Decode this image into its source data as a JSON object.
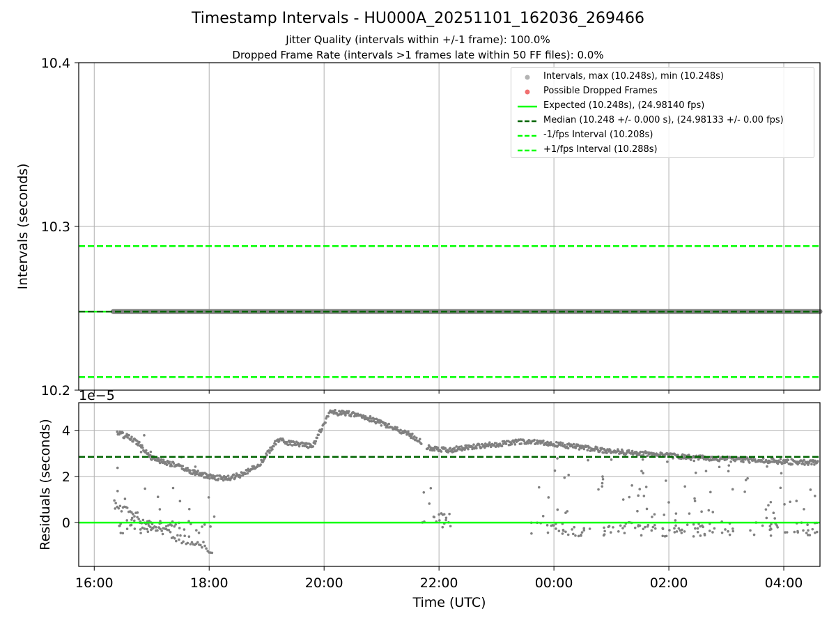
{
  "title": "Timestamp Intervals - HU000A_20251101_162036_269466",
  "subtitle_jitter": "Jitter Quality (intervals within +/-1 frame): 100.0%",
  "subtitle_dropped": "Dropped Frame Rate (intervals >1 frames late within 50 FF files): 0.0%",
  "colors": {
    "interval_points": "#808080",
    "dropped_points": "#f06060",
    "expected_line": "#00ff00",
    "median_line": "#006400",
    "fps_interval_line": "#00ff00",
    "grid": "#b0b0b0"
  },
  "legend": {
    "placement": "upper right",
    "items": [
      {
        "label": "Intervals, max (10.248s), min (10.248s)",
        "key": "dot-gray"
      },
      {
        "label": "Possible Dropped Frames",
        "key": "dot-red"
      },
      {
        "label": "Expected (10.248s), (24.98140 fps)",
        "key": "solid-green"
      },
      {
        "label": "Median (10.248 +/- 0.000 s), (24.98133 +/- 0.00 fps)",
        "key": "dash-darkgreen"
      },
      {
        "label": "-1/fps Interval (10.208s)",
        "key": "dash-green"
      },
      {
        "label": "+1/fps Interval (10.288s)",
        "key": "dash-green"
      }
    ]
  },
  "chart_data": [
    {
      "type": "scatter",
      "panel": "top",
      "ylabel": "Intervals (seconds)",
      "ylim": [
        10.2,
        10.4
      ],
      "yticks": [
        "10.2",
        "10.3",
        "10.4"
      ],
      "grid": true,
      "x_range_hours": [
        15.73,
        28.63
      ],
      "interval_series": {
        "start_hour": 16.33,
        "end_hour": 28.63,
        "value": 10.248
      },
      "lines": {
        "expected": 10.248,
        "median": 10.248,
        "minus_fps": 10.208,
        "plus_fps": 10.288
      }
    },
    {
      "type": "scatter",
      "panel": "bottom",
      "ylabel": "Residuals (seconds)",
      "offset_label": "1e−5",
      "ylim": [
        -1.9,
        5.2
      ],
      "yticks": [
        0,
        2,
        4
      ],
      "ytick_labels": [
        "0",
        "2",
        "4"
      ],
      "median_line": 2.85,
      "expected_line": 0,
      "xlabel": "Time (UTC)",
      "xticks_hours": [
        16,
        18,
        20,
        22,
        24,
        26,
        28
      ],
      "xtick_labels": [
        "16:00",
        "18:00",
        "20:00",
        "22:00",
        "00:00",
        "02:00",
        "04:00"
      ],
      "x_range_hours": [
        15.73,
        28.63
      ],
      "main_trend": [
        [
          16.4,
          3.9
        ],
        [
          16.6,
          3.7
        ],
        [
          16.8,
          3.4
        ],
        [
          17.0,
          2.8
        ],
        [
          17.4,
          2.5
        ],
        [
          17.7,
          2.2
        ],
        [
          18.0,
          2.0
        ],
        [
          18.3,
          1.9
        ],
        [
          18.6,
          2.1
        ],
        [
          18.9,
          2.6
        ],
        [
          19.2,
          3.6
        ],
        [
          19.5,
          3.4
        ],
        [
          19.8,
          3.3
        ],
        [
          20.1,
          4.8
        ],
        [
          20.5,
          4.7
        ],
        [
          20.8,
          4.5
        ],
        [
          21.2,
          4.1
        ],
        [
          21.5,
          3.8
        ],
        [
          21.7,
          3.5
        ],
        [
          21.8,
          3.25
        ],
        [
          22.2,
          3.15
        ],
        [
          22.6,
          3.3
        ],
        [
          23.0,
          3.4
        ],
        [
          23.4,
          3.5
        ],
        [
          23.8,
          3.5
        ],
        [
          24.0,
          3.4
        ],
        [
          24.5,
          3.25
        ],
        [
          25.0,
          3.1
        ],
        [
          25.5,
          3.0
        ],
        [
          26.0,
          2.9
        ],
        [
          26.5,
          2.8
        ],
        [
          27.0,
          2.75
        ],
        [
          27.5,
          2.7
        ],
        [
          28.0,
          2.65
        ],
        [
          28.6,
          2.6
        ]
      ],
      "low_branch": [
        [
          16.35,
          0.8
        ],
        [
          16.5,
          0.6
        ],
        [
          16.7,
          0.3
        ],
        [
          16.9,
          0.0
        ],
        [
          17.1,
          -0.3
        ],
        [
          17.3,
          -0.5
        ],
        [
          17.5,
          -0.7
        ],
        [
          17.7,
          -0.8
        ],
        [
          17.9,
          -1.0
        ],
        [
          18.05,
          -1.3
        ]
      ],
      "scatter_regions": [
        {
          "x": [
            16.35,
            18.1
          ],
          "y": [
            -0.5,
            4.0
          ]
        },
        {
          "x": [
            21.7,
            22.2
          ],
          "y": [
            -0.2,
            2.0
          ]
        },
        {
          "x": [
            23.6,
            28.63
          ],
          "y": [
            -0.6,
            2.8
          ]
        }
      ]
    }
  ]
}
